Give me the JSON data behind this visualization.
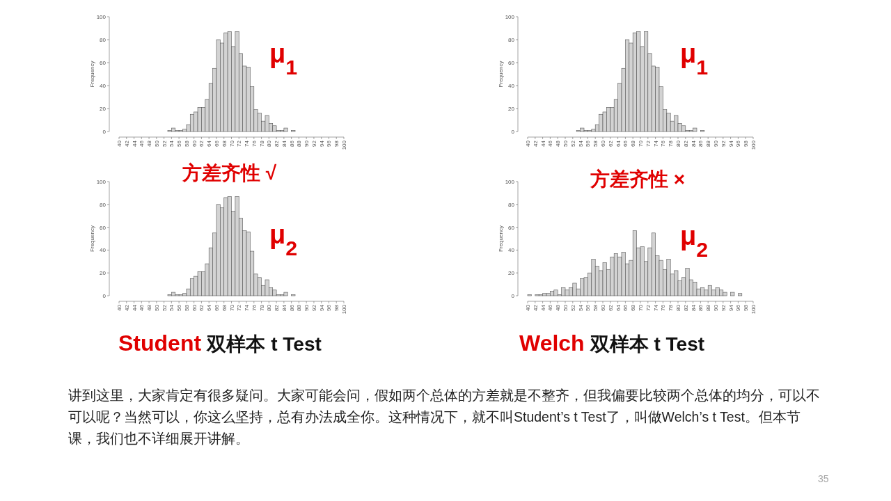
{
  "chart_data": [
    {
      "type": "histogram",
      "ylabel": "Frequency",
      "color": "#d3d3d3",
      "xlim": [
        40,
        100
      ],
      "ylim": [
        0,
        100
      ],
      "xticks": [
        40,
        42,
        44,
        46,
        48,
        50,
        52,
        54,
        56,
        58,
        60,
        62,
        64,
        66,
        68,
        70,
        72,
        74,
        76,
        78,
        80,
        82,
        84,
        86,
        88,
        90,
        92,
        94,
        96,
        98,
        100
      ],
      "yticks": [
        0,
        20,
        40,
        60,
        80,
        100
      ],
      "bins": [
        40,
        41,
        42,
        43,
        44,
        45,
        46,
        47,
        48,
        49,
        50,
        51,
        52,
        53,
        54,
        55,
        56,
        57,
        58,
        59,
        60,
        61,
        62,
        63,
        64,
        65,
        66,
        67,
        68,
        69,
        70,
        71,
        72,
        73,
        74,
        75,
        76,
        77,
        78,
        79,
        80,
        81,
        82,
        83,
        84,
        85,
        86,
        87,
        88,
        89,
        90,
        91,
        92,
        93,
        94,
        95,
        96,
        97,
        98,
        99,
        100
      ],
      "values": [
        0,
        0,
        0,
        0,
        0,
        0,
        0,
        0,
        0,
        0,
        0,
        0,
        0,
        1,
        3,
        1,
        1,
        2,
        6,
        15,
        17,
        21,
        21,
        28,
        42,
        55,
        80,
        77,
        86,
        87,
        74,
        87,
        68,
        57,
        56,
        39,
        19,
        16,
        9,
        14,
        7,
        5,
        1,
        1,
        3,
        0,
        1,
        0,
        0,
        0,
        0,
        0,
        0,
        0,
        0,
        0,
        0,
        0,
        0,
        0
      ],
      "annotations": [
        "μ$_{1}$"
      ]
    },
    {
      "type": "histogram",
      "ylabel": "Frequency",
      "color": "#d3d3d3",
      "xlim": [
        40,
        100
      ],
      "ylim": [
        0,
        100
      ],
      "xticks": [
        40,
        42,
        44,
        46,
        48,
        50,
        52,
        54,
        56,
        58,
        60,
        62,
        64,
        66,
        68,
        70,
        72,
        74,
        76,
        78,
        80,
        82,
        84,
        86,
        88,
        90,
        92,
        94,
        96,
        98,
        100
      ],
      "yticks": [
        0,
        20,
        40,
        60,
        80,
        100
      ],
      "bins": [
        40,
        41,
        42,
        43,
        44,
        45,
        46,
        47,
        48,
        49,
        50,
        51,
        52,
        53,
        54,
        55,
        56,
        57,
        58,
        59,
        60,
        61,
        62,
        63,
        64,
        65,
        66,
        67,
        68,
        69,
        70,
        71,
        72,
        73,
        74,
        75,
        76,
        77,
        78,
        79,
        80,
        81,
        82,
        83,
        84,
        85,
        86,
        87,
        88,
        89,
        90,
        91,
        92,
        93,
        94,
        95,
        96,
        97,
        98,
        99,
        100
      ],
      "values": [
        0,
        0,
        0,
        0,
        0,
        0,
        0,
        0,
        0,
        0,
        0,
        0,
        0,
        1,
        3,
        1,
        1,
        2,
        6,
        15,
        17,
        21,
        21,
        28,
        42,
        55,
        80,
        77,
        86,
        87,
        74,
        87,
        68,
        57,
        56,
        39,
        19,
        16,
        9,
        14,
        7,
        5,
        1,
        1,
        3,
        0,
        1,
        0,
        0,
        0,
        0,
        0,
        0,
        0,
        0,
        0,
        0,
        0,
        0,
        0
      ],
      "annotations": [
        "μ$_{2}$",
        "方差齐性 √",
        "Student",
        "双样本 t Test"
      ]
    },
    {
      "type": "histogram",
      "ylabel": "Frequency",
      "color": "#d3d3d3",
      "xlim": [
        40,
        100
      ],
      "ylim": [
        0,
        100
      ],
      "xticks": [
        40,
        42,
        44,
        46,
        48,
        50,
        52,
        54,
        56,
        58,
        60,
        62,
        64,
        66,
        68,
        70,
        72,
        74,
        76,
        78,
        80,
        82,
        84,
        86,
        88,
        90,
        92,
        94,
        96,
        98,
        100
      ],
      "yticks": [
        0,
        20,
        40,
        60,
        80,
        100
      ],
      "bins": [
        40,
        41,
        42,
        43,
        44,
        45,
        46,
        47,
        48,
        49,
        50,
        51,
        52,
        53,
        54,
        55,
        56,
        57,
        58,
        59,
        60,
        61,
        62,
        63,
        64,
        65,
        66,
        67,
        68,
        69,
        70,
        71,
        72,
        73,
        74,
        75,
        76,
        77,
        78,
        79,
        80,
        81,
        82,
        83,
        84,
        85,
        86,
        87,
        88,
        89,
        90,
        91,
        92,
        93,
        94,
        95,
        96,
        97,
        98,
        99,
        100
      ],
      "values": [
        0,
        0,
        0,
        0,
        0,
        0,
        0,
        0,
        0,
        0,
        0,
        0,
        0,
        1,
        3,
        1,
        1,
        2,
        6,
        15,
        17,
        21,
        21,
        28,
        42,
        55,
        80,
        77,
        86,
        87,
        74,
        87,
        68,
        57,
        56,
        39,
        19,
        16,
        9,
        14,
        7,
        5,
        1,
        1,
        3,
        0,
        1,
        0,
        0,
        0,
        0,
        0,
        0,
        0,
        0,
        0,
        0,
        0,
        0,
        0
      ],
      "annotations": [
        "μ$_{1}$"
      ]
    },
    {
      "type": "histogram",
      "ylabel": "Frequency",
      "color": "#d3d3d3",
      "xlim": [
        40,
        100
      ],
      "ylim": [
        0,
        100
      ],
      "xticks": [
        40,
        42,
        44,
        46,
        48,
        50,
        52,
        54,
        56,
        58,
        60,
        62,
        64,
        66,
        68,
        70,
        72,
        74,
        76,
        78,
        80,
        82,
        84,
        86,
        88,
        90,
        92,
        94,
        96,
        98,
        100
      ],
      "yticks": [
        0,
        20,
        40,
        60,
        80,
        100
      ],
      "bins": [
        40,
        41,
        42,
        43,
        44,
        45,
        46,
        47,
        48,
        49,
        50,
        51,
        52,
        53,
        54,
        55,
        56,
        57,
        58,
        59,
        60,
        61,
        62,
        63,
        64,
        65,
        66,
        67,
        68,
        69,
        70,
        71,
        72,
        73,
        74,
        75,
        76,
        77,
        78,
        79,
        80,
        81,
        82,
        83,
        84,
        85,
        86,
        87,
        88,
        89,
        90,
        91,
        92,
        93,
        94,
        95,
        96,
        97,
        98,
        99,
        100
      ],
      "values": [
        1,
        0,
        1,
        1,
        2,
        2,
        4,
        5,
        1,
        7,
        5,
        7,
        11,
        6,
        15,
        16,
        20,
        32,
        26,
        22,
        29,
        23,
        34,
        37,
        34,
        38,
        28,
        31,
        57,
        42,
        43,
        30,
        42,
        55,
        35,
        31,
        23,
        32,
        19,
        22,
        13,
        16,
        24,
        14,
        12,
        6,
        7,
        5,
        9,
        5,
        7,
        5,
        3,
        0,
        3,
        0,
        2,
        0,
        0,
        0
      ],
      "annotations": [
        "μ$_{2}$",
        "方差齐性 ×",
        "Welch",
        "双样本 t Test"
      ]
    },
    {
      "type": "other",
      "annotations": [
        "讲到这里，大家肯定有很多疑问。大家可能会问，假如两个总体的方差就是不整齐，但我偏要比较两个总体的均分，可以不可以呢？当然可以，你这么坚持，总有办法成全你。这种情况下，就不叫Student’s t Test了，叫做Welch’s t Test。但本节课，我们也不详细展开讲解。",
        "35"
      ]
    }
  ]
}
